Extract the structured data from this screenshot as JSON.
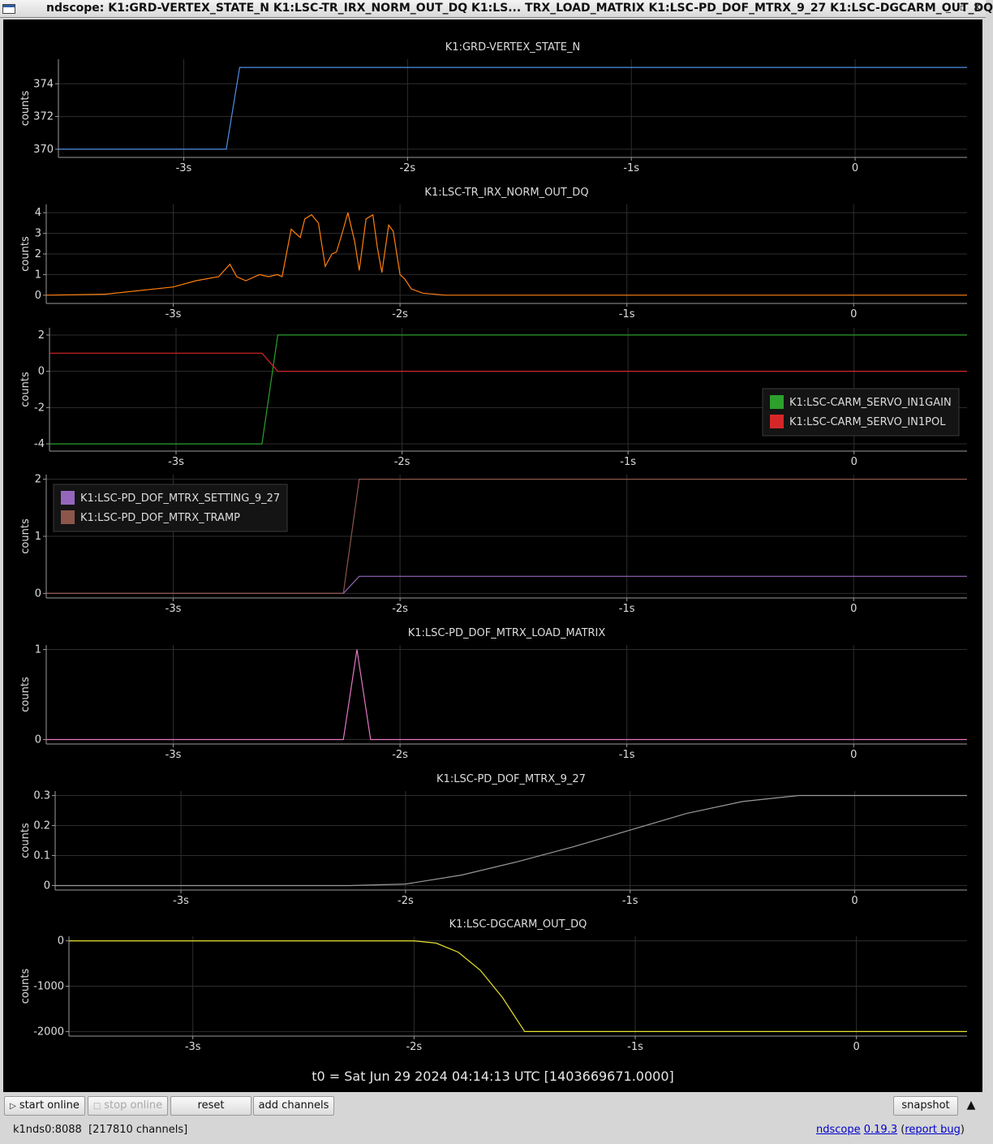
{
  "window": {
    "title": "ndscope: K1:GRD-VERTEX_STATE_N K1:LSC-TR_IRX_NORM_OUT_DQ K1:LS... TRX_LOAD_MATRIX K1:LSC-PD_DOF_MTRX_9_27 K1:LSC-DGCARM_OUT_DQ",
    "buttons": [
      "minimize-icon",
      "maximize-icon",
      "close-icon"
    ]
  },
  "x_axis": {
    "ticks": [
      {
        "v": -3,
        "label": "-3s"
      },
      {
        "v": -2,
        "label": "-2s"
      },
      {
        "v": -1,
        "label": "-1s"
      },
      {
        "v": 0,
        "label": "0"
      }
    ],
    "range": [
      -3.56,
      0.5
    ]
  },
  "colors": {
    "background": "#000000",
    "grid": "#2e2e2e",
    "axis": "#9a9a9a",
    "text": "#dddddd"
  },
  "chart_data": [
    {
      "type": "line",
      "title": "K1:GRD-VERTEX_STATE_N",
      "ylabel": "counts",
      "yticks": [
        370,
        372,
        374
      ],
      "ylim": [
        369.5,
        375.5
      ],
      "series": [
        {
          "color": "#4f8fe6",
          "x": [
            -3.56,
            -2.81,
            -2.75,
            0.5
          ],
          "y": [
            370,
            370,
            375,
            375
          ]
        }
      ]
    },
    {
      "type": "line",
      "title": "K1:LSC-TR_IRX_NORM_OUT_DQ",
      "ylabel": "counts",
      "yticks": [
        0,
        1,
        2,
        3,
        4
      ],
      "ylim": [
        -0.4,
        4.4
      ],
      "series": [
        {
          "color": "#ff7f0e",
          "x": [
            -3.56,
            -3.3,
            -3.0,
            -2.9,
            -2.8,
            -2.75,
            -2.72,
            -2.68,
            -2.62,
            -2.58,
            -2.54,
            -2.52,
            -2.48,
            -2.44,
            -2.42,
            -2.39,
            -2.36,
            -2.33,
            -2.3,
            -2.28,
            -2.25,
            -2.23,
            -2.2,
            -2.18,
            -2.15,
            -2.12,
            -2.1,
            -2.08,
            -2.05,
            -2.03,
            -2.0,
            -1.98,
            -1.95,
            -1.9,
            -1.8,
            0.5
          ],
          "y": [
            0.0,
            0.05,
            0.4,
            0.7,
            0.9,
            1.5,
            0.9,
            0.7,
            1.0,
            0.9,
            1.0,
            0.9,
            3.2,
            2.8,
            3.7,
            3.9,
            3.5,
            1.4,
            2.0,
            2.1,
            3.2,
            4.0,
            2.6,
            1.2,
            3.7,
            3.9,
            2.3,
            1.1,
            3.4,
            3.1,
            1.0,
            0.8,
            0.3,
            0.1,
            0.0,
            0.0
          ]
        }
      ]
    },
    {
      "type": "line",
      "title": "",
      "ylabel": "counts",
      "yticks": [
        -4,
        -2,
        0,
        2
      ],
      "ylim": [
        -4.4,
        2.4
      ],
      "legend": {
        "position": "right"
      },
      "series": [
        {
          "name": "K1:LSC-CARM_SERVO_IN1GAIN",
          "color": "#2ca02c",
          "x": [
            -3.56,
            -2.62,
            -2.55,
            0.5
          ],
          "y": [
            -4,
            -4,
            2,
            2
          ]
        },
        {
          "name": "K1:LSC-CARM_SERVO_IN1POL",
          "color": "#d62728",
          "x": [
            -3.56,
            -2.62,
            -2.55,
            0.5
          ],
          "y": [
            1,
            1,
            0,
            0
          ]
        }
      ]
    },
    {
      "type": "line",
      "title": "",
      "ylabel": "counts",
      "yticks": [
        0,
        1,
        2
      ],
      "ylim": [
        -0.08,
        2.08
      ],
      "legend": {
        "position": "top-left"
      },
      "series": [
        {
          "name": "K1:LSC-PD_DOF_MTRX_SETTING_9_27",
          "color": "#9467bd",
          "x": [
            -3.56,
            -2.25,
            -2.18,
            0.5
          ],
          "y": [
            0,
            0,
            0.3,
            0.3
          ]
        },
        {
          "name": "K1:LSC-PD_DOF_MTRX_TRAMP",
          "color": "#8c564b",
          "x": [
            -3.56,
            -2.25,
            -2.18,
            0.5
          ],
          "y": [
            0,
            0,
            2,
            2
          ]
        }
      ]
    },
    {
      "type": "line",
      "title": "K1:LSC-PD_DOF_MTRX_LOAD_MATRIX",
      "ylabel": "counts",
      "yticks": [
        0,
        1
      ],
      "ylim": [
        -0.05,
        1.05
      ],
      "series": [
        {
          "color": "#e377c2",
          "x": [
            -3.56,
            -2.25,
            -2.19,
            -2.13,
            0.5
          ],
          "y": [
            0,
            0,
            1,
            0,
            0
          ]
        }
      ]
    },
    {
      "type": "line",
      "title": "K1:LSC-PD_DOF_MTRX_9_27",
      "ylabel": "counts",
      "yticks": [
        0,
        0.1,
        0.2,
        0.3
      ],
      "ylim": [
        -0.015,
        0.315
      ],
      "series": [
        {
          "color": "#9a9a9a",
          "x": [
            -3.56,
            -2.25,
            -2.0,
            -1.75,
            -1.5,
            -1.25,
            -1.0,
            -0.75,
            -0.5,
            -0.25,
            0.5
          ],
          "y": [
            0,
            0,
            0.005,
            0.035,
            0.08,
            0.13,
            0.185,
            0.24,
            0.28,
            0.3,
            0.3
          ]
        }
      ]
    },
    {
      "type": "line",
      "title": "K1:LSC-DGCARM_OUT_DQ",
      "ylabel": "counts",
      "yticks": [
        -2000,
        -1000,
        0
      ],
      "ylim": [
        -2100,
        100
      ],
      "series": [
        {
          "color": "#e6e22e",
          "x": [
            -3.56,
            -2.0,
            -1.9,
            -1.8,
            -1.7,
            -1.6,
            -1.5,
            0.5
          ],
          "y": [
            0,
            0,
            -50,
            -250,
            -650,
            -1250,
            -2000,
            -2000
          ]
        }
      ]
    }
  ],
  "footer": {
    "t0": "t0 = Sat Jun 29 2024 04:14:13 UTC [1403669671.0000]"
  },
  "controls": {
    "start_online": "start online",
    "stop_online": "stop online",
    "reset": "reset",
    "add_channels": "add channels",
    "snapshot": "snapshot"
  },
  "status": {
    "server": "k1nds0:8088",
    "channels": "[217810 channels]",
    "app": "ndscope",
    "version": "0.19.3",
    "report": "report bug"
  }
}
